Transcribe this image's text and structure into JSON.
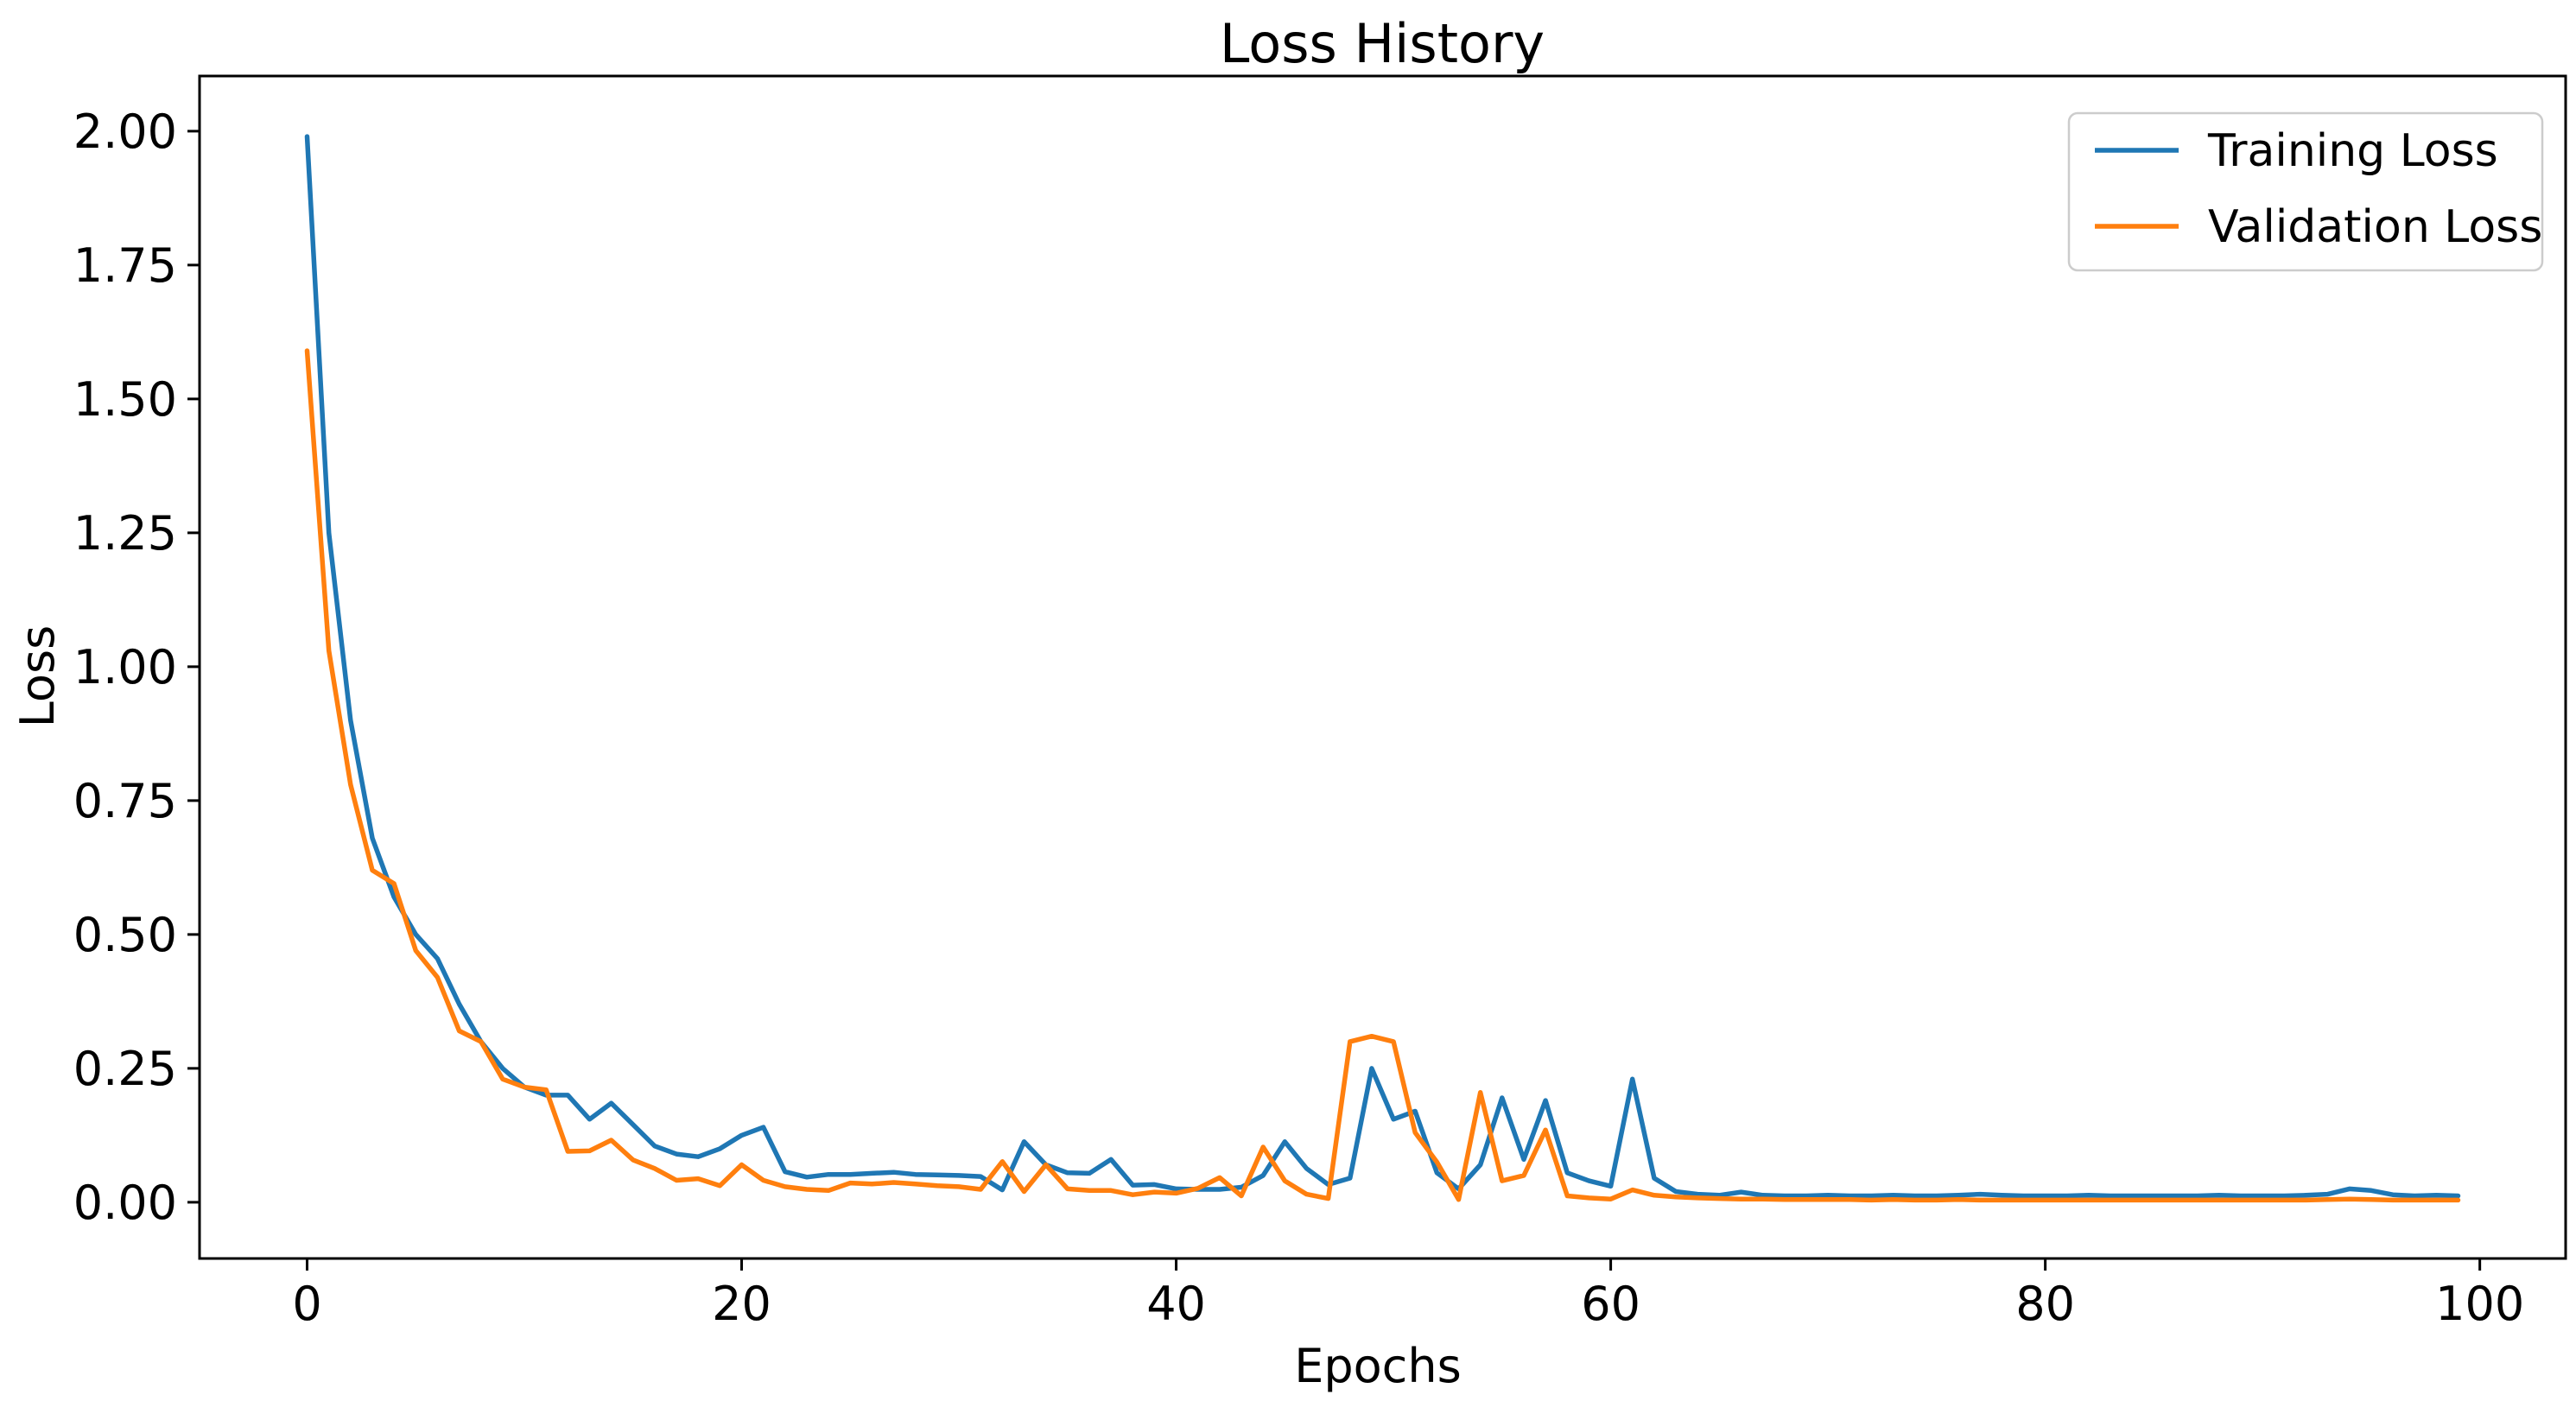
{
  "figure": {
    "background_color": "#ffffff",
    "axis_color": "#000000"
  },
  "chart_data": {
    "type": "line",
    "title": "Loss History",
    "xlabel": "Epochs",
    "ylabel": "Loss",
    "grid": false,
    "legend_position": "upper right",
    "legend_border_color": "#cccccc",
    "xlim": [
      -4.95,
      103.95
    ],
    "ylim": [
      -0.105,
      2.103
    ],
    "xticks": {
      "values": [
        0,
        20,
        40,
        60,
        80,
        100
      ],
      "labels": [
        "0",
        "20",
        "40",
        "60",
        "80",
        "100"
      ]
    },
    "yticks": {
      "values": [
        0.0,
        0.25,
        0.5,
        0.75,
        1.0,
        1.25,
        1.5,
        1.75,
        2.0
      ],
      "labels": [
        "0.00",
        "0.25",
        "0.50",
        "0.75",
        "1.00",
        "1.25",
        "1.50",
        "1.75",
        "2.00"
      ]
    },
    "x": [
      0,
      1,
      2,
      3,
      4,
      5,
      6,
      7,
      8,
      9,
      10,
      11,
      12,
      13,
      14,
      15,
      16,
      17,
      18,
      19,
      20,
      21,
      22,
      23,
      24,
      25,
      26,
      27,
      28,
      29,
      30,
      31,
      32,
      33,
      34,
      35,
      36,
      37,
      38,
      39,
      40,
      41,
      42,
      43,
      44,
      45,
      46,
      47,
      48,
      49,
      50,
      51,
      52,
      53,
      54,
      55,
      56,
      57,
      58,
      59,
      60,
      61,
      62,
      63,
      64,
      65,
      66,
      67,
      68,
      69,
      70,
      71,
      72,
      73,
      74,
      75,
      76,
      77,
      78,
      79,
      80,
      81,
      82,
      83,
      84,
      85,
      86,
      87,
      88,
      89,
      90,
      91,
      92,
      93,
      94,
      95,
      96,
      97,
      98,
      99
    ],
    "series": [
      {
        "name": "Training Loss",
        "color": "#1f77b4",
        "values": [
          1.99,
          1.25,
          0.9,
          0.68,
          0.57,
          0.5,
          0.455,
          0.37,
          0.3,
          0.25,
          0.215,
          0.2,
          0.2,
          0.155,
          0.185,
          0.145,
          0.105,
          0.09,
          0.085,
          0.1,
          0.125,
          0.14,
          0.057,
          0.047,
          0.052,
          0.052,
          0.054,
          0.056,
          0.052,
          0.051,
          0.05,
          0.048,
          0.023,
          0.113,
          0.07,
          0.055,
          0.054,
          0.08,
          0.032,
          0.033,
          0.025,
          0.024,
          0.024,
          0.028,
          0.05,
          0.113,
          0.063,
          0.033,
          0.045,
          0.25,
          0.155,
          0.17,
          0.055,
          0.025,
          0.07,
          0.195,
          0.08,
          0.19,
          0.055,
          0.04,
          0.03,
          0.23,
          0.045,
          0.02,
          0.015,
          0.013,
          0.019,
          0.013,
          0.012,
          0.012,
          0.013,
          0.012,
          0.012,
          0.013,
          0.012,
          0.012,
          0.013,
          0.015,
          0.013,
          0.012,
          0.012,
          0.012,
          0.013,
          0.012,
          0.012,
          0.012,
          0.012,
          0.012,
          0.013,
          0.012,
          0.012,
          0.012,
          0.013,
          0.015,
          0.025,
          0.022,
          0.014,
          0.012,
          0.013,
          0.012
        ]
      },
      {
        "name": "Validation Loss",
        "color": "#ff7f0e",
        "values": [
          1.59,
          1.03,
          0.78,
          0.62,
          0.595,
          0.47,
          0.42,
          0.32,
          0.3,
          0.23,
          0.215,
          0.21,
          0.095,
          0.096,
          0.116,
          0.079,
          0.063,
          0.041,
          0.044,
          0.031,
          0.07,
          0.041,
          0.029,
          0.024,
          0.022,
          0.036,
          0.034,
          0.037,
          0.034,
          0.031,
          0.029,
          0.024,
          0.076,
          0.02,
          0.07,
          0.025,
          0.022,
          0.022,
          0.014,
          0.019,
          0.017,
          0.026,
          0.046,
          0.012,
          0.103,
          0.04,
          0.015,
          0.007,
          0.3,
          0.31,
          0.3,
          0.13,
          0.075,
          0.005,
          0.205,
          0.04,
          0.05,
          0.135,
          0.012,
          0.008,
          0.006,
          0.023,
          0.013,
          0.01,
          0.008,
          0.007,
          0.006,
          0.006,
          0.005,
          0.005,
          0.005,
          0.005,
          0.004,
          0.005,
          0.004,
          0.004,
          0.005,
          0.004,
          0.004,
          0.004,
          0.004,
          0.004,
          0.004,
          0.004,
          0.004,
          0.004,
          0.004,
          0.004,
          0.004,
          0.004,
          0.004,
          0.004,
          0.004,
          0.005,
          0.006,
          0.005,
          0.004,
          0.004,
          0.004,
          0.004
        ]
      }
    ]
  }
}
